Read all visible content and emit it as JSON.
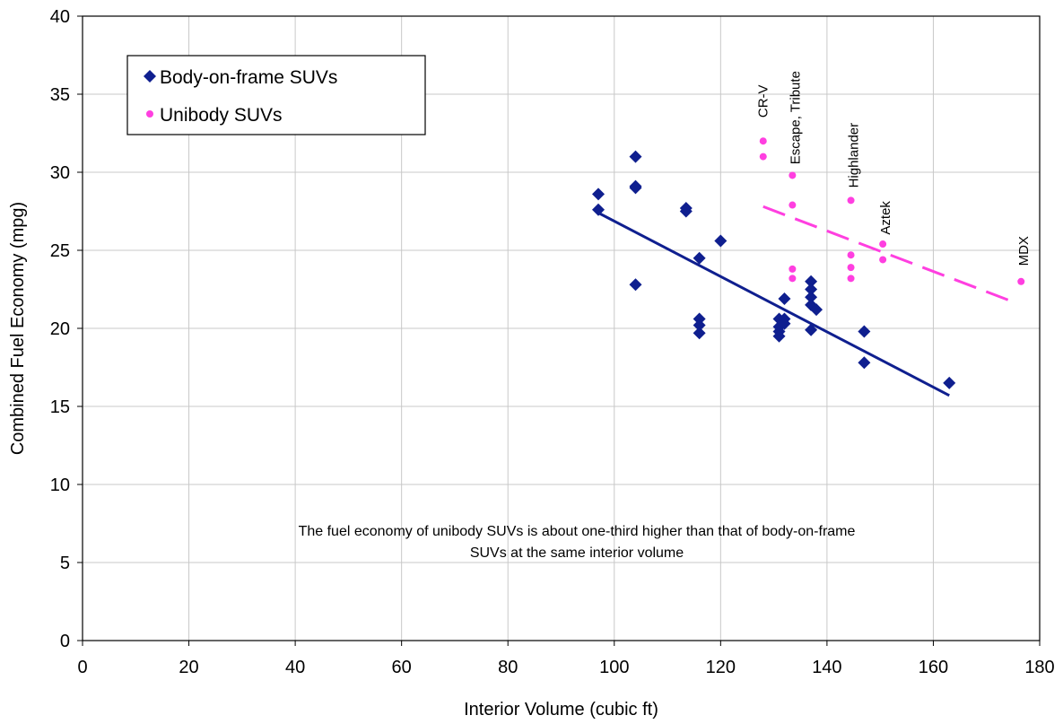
{
  "chart_data": {
    "type": "scatter",
    "xlabel": "Interior Volume (cubic ft)",
    "ylabel": "Combined Fuel Economy (mpg)",
    "xlim": [
      0,
      180
    ],
    "ylim": [
      0,
      40
    ],
    "xticks": [
      0,
      20,
      40,
      60,
      80,
      100,
      120,
      140,
      160,
      180
    ],
    "yticks": [
      0,
      5,
      10,
      15,
      20,
      25,
      30,
      35,
      40
    ],
    "grid": true,
    "legend_position": "top-left",
    "series": [
      {
        "name": "Body-on-frame SUVs",
        "marker": "diamond",
        "color": "#0f1f8f",
        "points": [
          {
            "x": 97,
            "y": 28.6
          },
          {
            "x": 97,
            "y": 27.6
          },
          {
            "x": 104,
            "y": 31.0
          },
          {
            "x": 104,
            "y": 29.1
          },
          {
            "x": 104,
            "y": 29.0
          },
          {
            "x": 104,
            "y": 22.8
          },
          {
            "x": 113.5,
            "y": 27.7
          },
          {
            "x": 113.5,
            "y": 27.5
          },
          {
            "x": 116,
            "y": 24.5
          },
          {
            "x": 116,
            "y": 20.6
          },
          {
            "x": 116,
            "y": 20.2
          },
          {
            "x": 116,
            "y": 19.7
          },
          {
            "x": 120,
            "y": 25.6
          },
          {
            "x": 131,
            "y": 20.6
          },
          {
            "x": 131,
            "y": 20.1
          },
          {
            "x": 131,
            "y": 19.8
          },
          {
            "x": 131,
            "y": 19.5
          },
          {
            "x": 132,
            "y": 21.9
          },
          {
            "x": 132,
            "y": 20.6
          },
          {
            "x": 132,
            "y": 20.3
          },
          {
            "x": 137,
            "y": 23.0
          },
          {
            "x": 137,
            "y": 22.5
          },
          {
            "x": 137,
            "y": 22.0
          },
          {
            "x": 137,
            "y": 21.5
          },
          {
            "x": 137,
            "y": 19.9
          },
          {
            "x": 138,
            "y": 21.2
          },
          {
            "x": 147,
            "y": 19.8
          },
          {
            "x": 147,
            "y": 17.8
          },
          {
            "x": 163,
            "y": 16.5
          }
        ],
        "trendline": {
          "style": "solid",
          "from": [
            97,
            27.4
          ],
          "to": [
            163,
            15.7
          ]
        }
      },
      {
        "name": "Unibody SUVs",
        "marker": "circle",
        "color": "#ff3fe0",
        "points": [
          {
            "x": 128,
            "y": 32.0
          },
          {
            "x": 128,
            "y": 31.0
          },
          {
            "x": 133.5,
            "y": 29.8
          },
          {
            "x": 133.5,
            "y": 27.9
          },
          {
            "x": 133.5,
            "y": 23.8
          },
          {
            "x": 133.5,
            "y": 23.2
          },
          {
            "x": 144.5,
            "y": 28.2
          },
          {
            "x": 144.5,
            "y": 24.7
          },
          {
            "x": 144.5,
            "y": 23.9
          },
          {
            "x": 144.5,
            "y": 23.2
          },
          {
            "x": 150.5,
            "y": 25.4
          },
          {
            "x": 150.5,
            "y": 24.4
          },
          {
            "x": 176.5,
            "y": 23.0
          }
        ],
        "trendline": {
          "style": "dashed",
          "from": [
            128,
            27.8
          ],
          "to": [
            175,
            21.7
          ]
        }
      }
    ],
    "annotations": [
      {
        "text": "CR-V",
        "x": 128,
        "y": 33.5
      },
      {
        "text": "Escape, Tribute",
        "x": 134,
        "y": 30.5
      },
      {
        "text": "Highlander",
        "x": 145,
        "y": 29.0
      },
      {
        "text": "Aztek",
        "x": 151,
        "y": 26.0
      },
      {
        "text": "MDX",
        "x": 177,
        "y": 24.0
      }
    ],
    "note_lines": [
      "The fuel economy of unibody SUVs is about one-third higher than that of body-on-frame",
      "SUVs at the same interior volume"
    ]
  }
}
